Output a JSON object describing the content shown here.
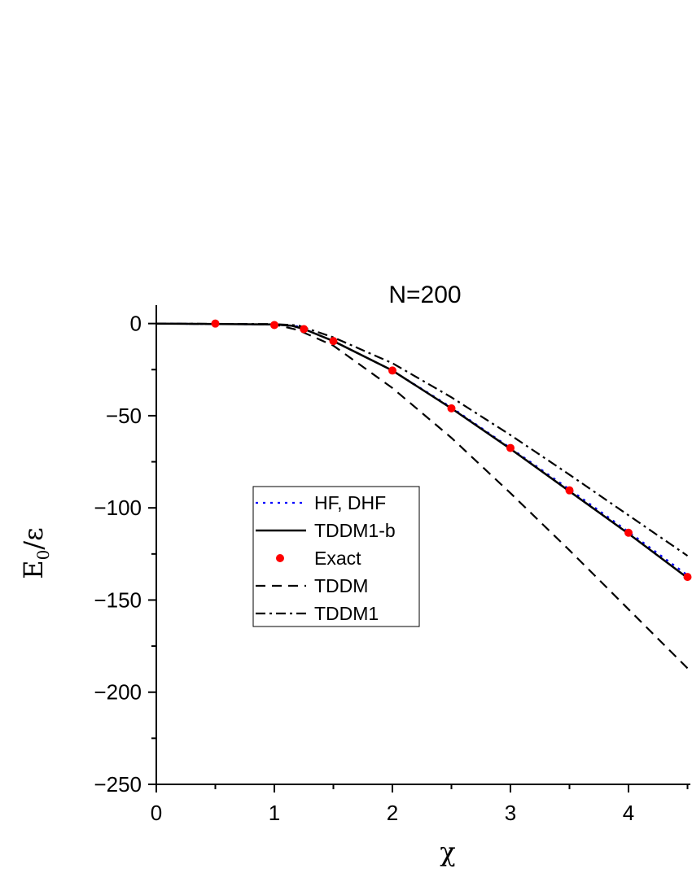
{
  "chart_data": {
    "type": "line",
    "title": "N=200",
    "xlabel": "χ",
    "ylabel_main": "E",
    "ylabel_sub": "0",
    "ylabel_rest": "/ε",
    "xlim": [
      0,
      4.5
    ],
    "ylim": [
      -250,
      10
    ],
    "xticks": [
      0,
      1,
      2,
      3,
      4
    ],
    "yticks": [
      0,
      -50,
      -100,
      -150,
      -200,
      -250
    ],
    "grid": false,
    "legend_position": "center-left",
    "series": [
      {
        "name": "HF, DHF",
        "style": "dotted",
        "color": "#0000ff",
        "x": [
          0,
          1.0,
          1.2,
          1.5,
          2.0,
          2.5,
          3.0,
          3.5,
          4.0,
          4.5
        ],
        "y": [
          0,
          -0.5,
          -1.5,
          -9.5,
          -25.5,
          -45.5,
          -67.5,
          -90,
          -113,
          -136.5
        ]
      },
      {
        "name": "TDDM1-b",
        "style": "solid",
        "color": "#000000",
        "x": [
          0,
          1.0,
          1.15,
          1.25,
          1.5,
          2.0,
          2.5,
          3.0,
          3.5,
          4.0,
          4.5
        ],
        "y": [
          0,
          -0.5,
          -1.2,
          -3.0,
          -9.5,
          -25.5,
          -46,
          -68,
          -91,
          -114,
          -138
        ]
      },
      {
        "name": "Exact",
        "style": "markers",
        "color": "#ff0000",
        "x": [
          0.5,
          1.0,
          1.25,
          1.5,
          2.0,
          2.5,
          3.0,
          3.5,
          4.0,
          4.5
        ],
        "y": [
          0,
          -0.8,
          -3,
          -9.5,
          -25.5,
          -46,
          -67.5,
          -90.5,
          -113.5,
          -137.5
        ]
      },
      {
        "name": "TDDM",
        "style": "dashed",
        "color": "#000000",
        "x": [
          0,
          1.0,
          1.2,
          1.5,
          2.0,
          2.5,
          3.0,
          3.5,
          4.0,
          4.5
        ],
        "y": [
          0,
          -0.5,
          -3.5,
          -12,
          -35,
          -62,
          -92,
          -123,
          -155,
          -187
        ]
      },
      {
        "name": "TDDM1",
        "style": "dashdot",
        "color": "#000000",
        "x": [
          0,
          1.0,
          1.2,
          1.5,
          2.0,
          2.5,
          3.0,
          3.5,
          4.0,
          4.5
        ],
        "y": [
          0,
          -0.3,
          -1.0,
          -7.5,
          -21.5,
          -40,
          -60.5,
          -82,
          -104,
          -126
        ]
      }
    ]
  }
}
